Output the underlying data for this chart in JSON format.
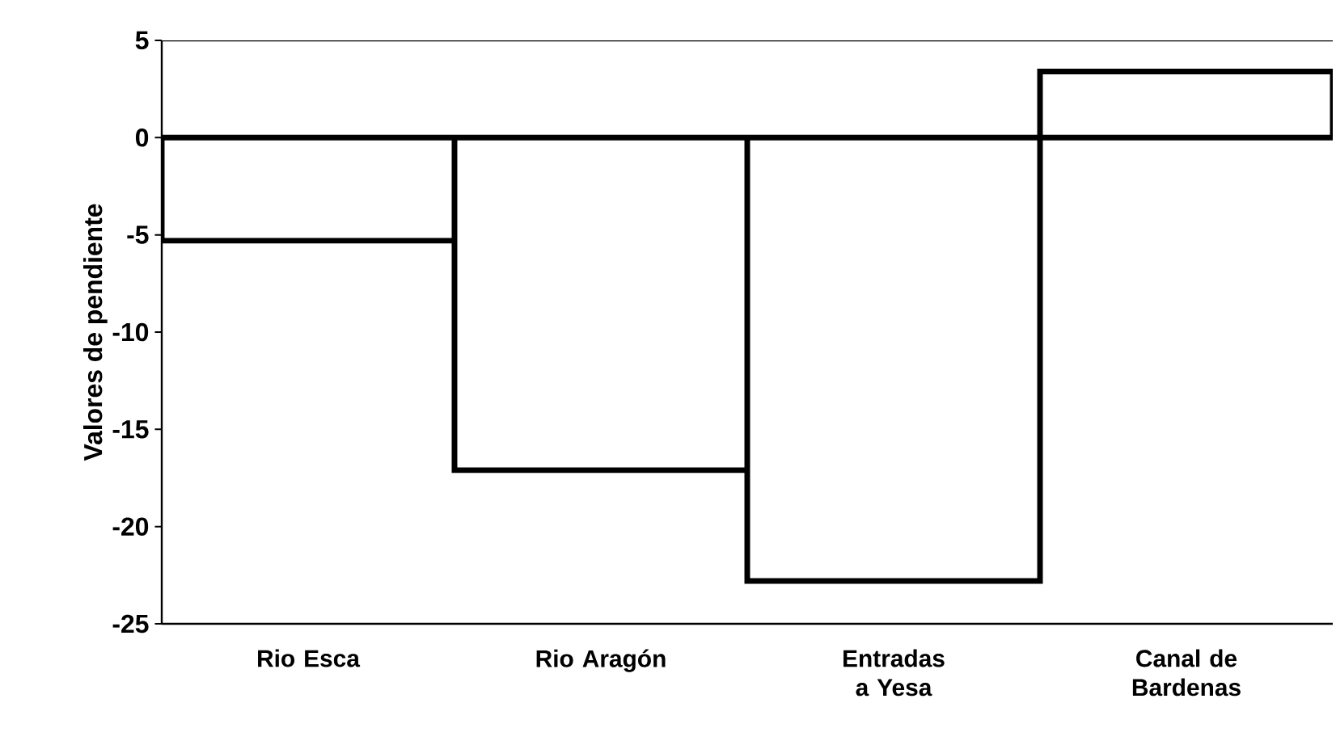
{
  "chart_data": {
    "type": "bar",
    "ylabel": "Valores de pendiente",
    "categories": [
      "Rio Esca",
      "Rio Aragón",
      "Entradas a Yesa",
      "Canal de Bardenas"
    ],
    "values": [
      -5.3,
      -17.1,
      -22.8,
      3.4
    ],
    "color": "#ffffff",
    "ylim": [
      -25,
      5
    ],
    "yticks": [
      -25,
      -20,
      -15,
      -10,
      -5,
      0,
      5
    ],
    "grid": false
  }
}
